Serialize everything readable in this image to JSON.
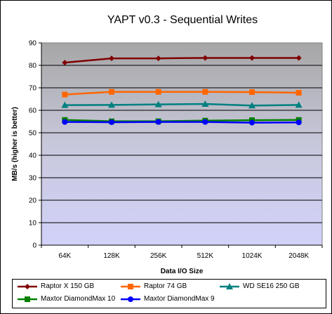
{
  "chart_data": {
    "type": "line",
    "title": "YAPT v0.3 - Sequential Writes",
    "xlabel": "Data I/O Size",
    "ylabel": "MB/s (higher is better)",
    "categories": [
      "64K",
      "128K",
      "256K",
      "512K",
      "1024K",
      "2048K"
    ],
    "ylim": [
      0,
      90
    ],
    "yticks": [
      0,
      10,
      20,
      30,
      40,
      50,
      60,
      70,
      80,
      90
    ],
    "grid": true,
    "legend_position": "bottom",
    "series": [
      {
        "name": "Raptor X 150 GB",
        "values": [
          81.2,
          83.1,
          83.1,
          83.3,
          83.3,
          83.3
        ],
        "color": "#800000",
        "marker": "diamond"
      },
      {
        "name": "Raptor 74 GB",
        "values": [
          67.0,
          68.2,
          68.2,
          68.2,
          68.1,
          67.8
        ],
        "color": "#ff6600",
        "marker": "square"
      },
      {
        "name": "WD SE16 250 GB",
        "values": [
          62.3,
          62.4,
          62.6,
          62.8,
          62.1,
          62.4
        ],
        "color": "#008080",
        "marker": "triangle"
      },
      {
        "name": "Maxtor DiamondMax 10",
        "values": [
          55.7,
          55.1,
          55.1,
          55.4,
          55.6,
          55.7
        ],
        "color": "#008000",
        "marker": "square"
      },
      {
        "name": "Maxtor DiamondMax 9",
        "values": [
          54.8,
          54.7,
          54.8,
          54.8,
          54.5,
          54.6
        ],
        "color": "#0000ff",
        "marker": "circle"
      }
    ]
  }
}
